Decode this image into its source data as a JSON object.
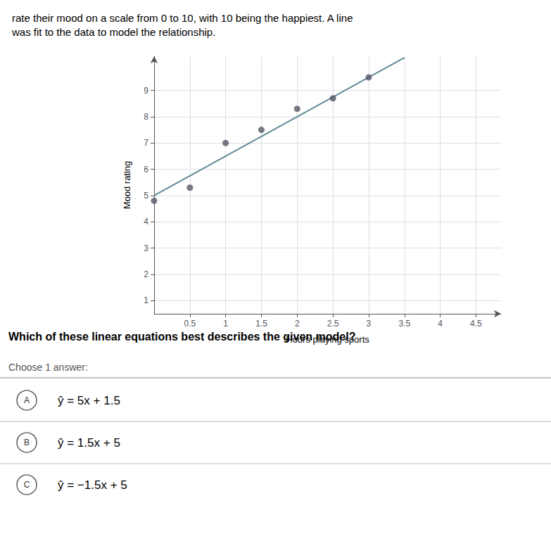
{
  "chart_data": {
    "type": "scatter",
    "title": "rate their mood on a scale from 0 to 10, with 10 being the happiest. A line\nwas fit to the data to model the relationship.",
    "x_label": "Hours playing sports",
    "y_label": "Mood rating",
    "xlim": [
      0,
      4.85
    ],
    "ylim": [
      0.5,
      10.3
    ],
    "xticks": [
      0.5,
      1,
      1.5,
      2,
      2.5,
      3,
      3.5,
      4,
      4.5
    ],
    "yticks": [
      1,
      2,
      3,
      4,
      5,
      6,
      7,
      8,
      9
    ],
    "grid": true,
    "series": [
      {
        "type": "scatter",
        "color": "#555566",
        "x": [
          0,
          0.5,
          1,
          1.5,
          2,
          2.5,
          3
        ],
        "values": [
          4.8,
          5.3,
          7.0,
          7.5,
          8.3,
          8.7,
          9.5
        ]
      },
      {
        "type": "line",
        "color": "#5f8a96",
        "x": [
          0,
          3.5
        ],
        "values": [
          5,
          10.25
        ]
      }
    ],
    "annotations": [
      "Which of these linear equations best describes the given model?",
      "Choose 1 answer:",
      "A",
      "ŷ = 5x + 1.5",
      "B",
      "ŷ = 1.5x + 5",
      "C",
      "ŷ = −1.5x + 5"
    ]
  }
}
